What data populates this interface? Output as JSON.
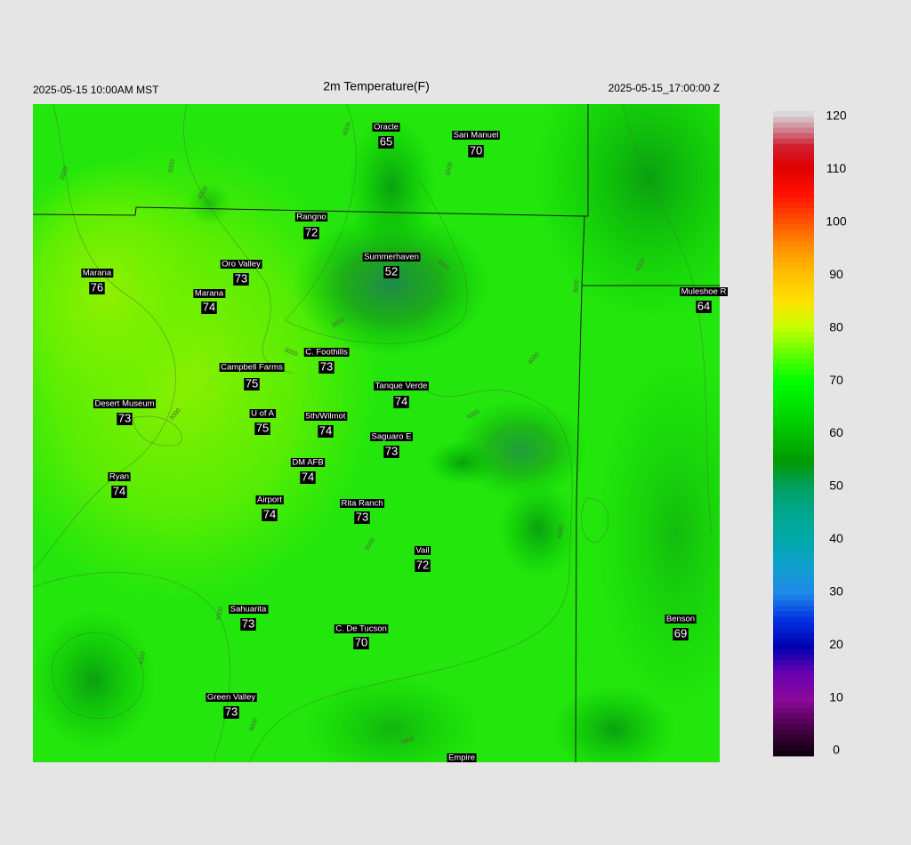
{
  "header": {
    "left": "2025-05-15 10:00AM MST",
    "title": "2m Temperature(F)",
    "right": "2025-05-15_17:00:00 Z"
  },
  "stations": [
    {
      "name": "Oracle",
      "value": 65
    },
    {
      "name": "San Manuel",
      "value": 70
    },
    {
      "name": "Rangno",
      "value": 72
    },
    {
      "name": "Summerhaven",
      "value": 52
    },
    {
      "name": "Marana",
      "value": 76
    },
    {
      "name": "Oro Valley",
      "value": 73
    },
    {
      "name": "Marana",
      "value": 74
    },
    {
      "name": "Muleshoe R",
      "value": 64
    },
    {
      "name": "C. Foothills",
      "value": 73
    },
    {
      "name": "Campbell Farms",
      "value": 75
    },
    {
      "name": "Tanque Verde",
      "value": 74
    },
    {
      "name": "Desert Museum",
      "value": 73
    },
    {
      "name": "U of A",
      "value": 75
    },
    {
      "name": "5th/Wilmot",
      "value": 74
    },
    {
      "name": "Saguaro E",
      "value": 73
    },
    {
      "name": "DM AFB",
      "value": 74
    },
    {
      "name": "Ryan",
      "value": 74
    },
    {
      "name": "Airport",
      "value": 74
    },
    {
      "name": "Rita Ranch",
      "value": 73
    },
    {
      "name": "Vail",
      "value": 72
    },
    {
      "name": "Sahuarita",
      "value": 73
    },
    {
      "name": "C. De Tucson",
      "value": 70
    },
    {
      "name": "Benson",
      "value": 69
    },
    {
      "name": "Green Valley",
      "value": 73
    },
    {
      "name": "Empire"
    }
  ],
  "colorbar": {
    "ticks": [
      0,
      10,
      20,
      30,
      40,
      50,
      60,
      70,
      80,
      90,
      100,
      110,
      120
    ],
    "lim": [
      0,
      120
    ]
  },
  "contour_labels": [
    "2000",
    "3000",
    "4000",
    "4000",
    "3000",
    "4000",
    "3000",
    "4000",
    "3000",
    "4000",
    "4000",
    "3000",
    "3000",
    "4000",
    "3000",
    "4000",
    "3000",
    "3000",
    "3000"
  ]
}
